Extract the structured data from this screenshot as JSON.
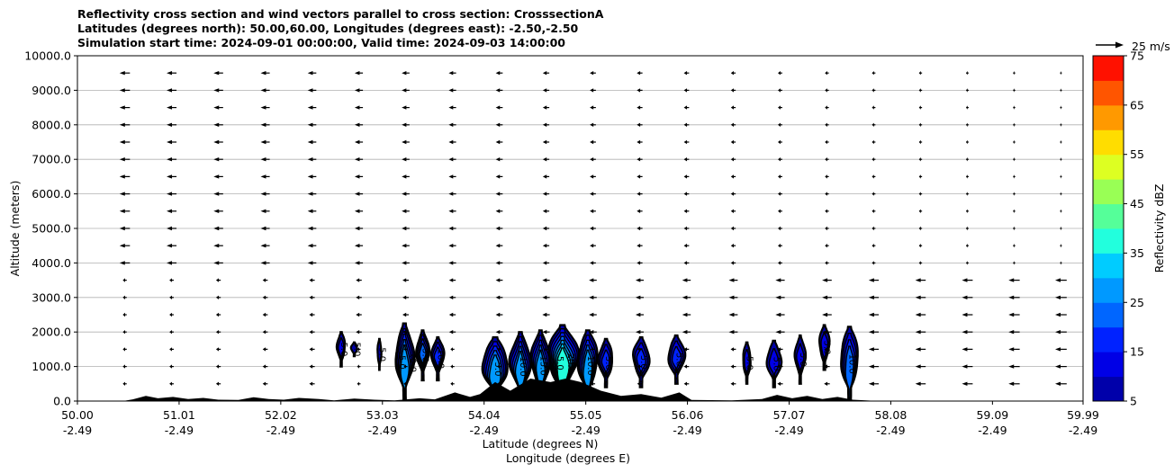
{
  "chart_data": {
    "type": "contourf",
    "title_lines": [
      "Reflectivity cross section and wind vectors parallel to cross section: CrosssectionA",
      "Latitudes (degrees north): 50.00,60.00, Longitudes (degrees east): -2.50,-2.50",
      "Simulation start time: 2024-09-01 00:00:00, Valid time: 2024-09-03 14:00:00"
    ],
    "xlabel_lines": [
      "Latitude (degrees N)",
      "Longitude (degrees E)"
    ],
    "ylabel": "Altitude (meters)",
    "xlim": [
      50.0,
      59.99
    ],
    "ylim": [
      0,
      10000
    ],
    "x_ticks": [
      {
        "lat": "50.00",
        "lon": "-2.49",
        "value": 50.0
      },
      {
        "lat": "51.01",
        "lon": "-2.49",
        "value": 51.01
      },
      {
        "lat": "52.02",
        "lon": "-2.49",
        "value": 52.02
      },
      {
        "lat": "53.03",
        "lon": "-2.49",
        "value": 53.03
      },
      {
        "lat": "54.04",
        "lon": "-2.49",
        "value": 54.04
      },
      {
        "lat": "55.05",
        "lon": "-2.49",
        "value": 55.05
      },
      {
        "lat": "56.06",
        "lon": "-2.49",
        "value": 56.06
      },
      {
        "lat": "57.07",
        "lon": "-2.49",
        "value": 57.07
      },
      {
        "lat": "58.08",
        "lon": "-2.49",
        "value": 58.08
      },
      {
        "lat": "59.09",
        "lon": "-2.49",
        "value": 59.09
      },
      {
        "lat": "59.99",
        "lon": "-2.49",
        "value": 59.99
      }
    ],
    "y_ticks": [
      0,
      1000,
      2000,
      3000,
      4000,
      5000,
      6000,
      7000,
      8000,
      9000,
      10000
    ],
    "y_tick_labels": [
      "0.0",
      "1000.0",
      "2000.0",
      "3000.0",
      "4000.0",
      "5000.0",
      "6000.0",
      "7000.0",
      "8000.0",
      "9000.0",
      "10000.0"
    ],
    "grid": "horizontal",
    "colorbar": {
      "label": "Reflectivity dBZ",
      "levels": [
        5,
        10,
        15,
        20,
        25,
        30,
        35,
        40,
        45,
        50,
        55,
        60,
        65,
        70,
        75
      ],
      "tick_labels": [
        "5",
        "15",
        "25",
        "35",
        "45",
        "55",
        "65",
        "75"
      ],
      "colors": [
        "#0000aa",
        "#0000e6",
        "#0022ff",
        "#0066ff",
        "#0099ff",
        "#00ccff",
        "#22ffdd",
        "#55ff99",
        "#99ff55",
        "#ddff22",
        "#ffdd00",
        "#ff9900",
        "#ff5500",
        "#ff1100",
        "#aa0000"
      ]
    },
    "wind_reference": {
      "label": "25 m/s",
      "speed": 25
    },
    "storm_cells": [
      {
        "lat": 52.62,
        "half_width": 0.04,
        "top": 2000,
        "bottom": 1000,
        "max_dbz": 12,
        "labels": [
          "5.0"
        ]
      },
      {
        "lat": 52.75,
        "half_width": 0.03,
        "top": 1700,
        "bottom": 1300,
        "max_dbz": 8,
        "labels": [
          "5.0"
        ]
      },
      {
        "lat": 53.0,
        "half_width": 0.02,
        "top": 1800,
        "bottom": 900,
        "max_dbz": 7,
        "labels": [
          "5.0"
        ]
      },
      {
        "lat": 53.25,
        "half_width": 0.09,
        "top": 2250,
        "bottom": 0,
        "max_dbz": 25,
        "labels": [
          "5.0",
          "10.0"
        ]
      },
      {
        "lat": 53.43,
        "half_width": 0.06,
        "top": 2050,
        "bottom": 600,
        "max_dbz": 20,
        "labels": [
          "5.0"
        ]
      },
      {
        "lat": 53.58,
        "half_width": 0.06,
        "top": 1850,
        "bottom": 600,
        "max_dbz": 17,
        "labels": [
          "10.0"
        ]
      },
      {
        "lat": 54.15,
        "half_width": 0.13,
        "top": 1850,
        "bottom": 0,
        "max_dbz": 25,
        "labels": [
          "5.0"
        ]
      },
      {
        "lat": 54.4,
        "half_width": 0.1,
        "top": 2000,
        "bottom": 0,
        "max_dbz": 25,
        "labels": [
          "10.0"
        ]
      },
      {
        "lat": 54.6,
        "half_width": 0.09,
        "top": 2050,
        "bottom": 0,
        "max_dbz": 25,
        "labels": [
          "15.0"
        ]
      },
      {
        "lat": 54.82,
        "half_width": 0.15,
        "top": 2200,
        "bottom": 0,
        "max_dbz": 35,
        "labels": [
          "5.0",
          "20.0"
        ]
      },
      {
        "lat": 55.07,
        "half_width": 0.1,
        "top": 2050,
        "bottom": 0,
        "max_dbz": 25,
        "labels": [
          "10.0"
        ]
      },
      {
        "lat": 55.25,
        "half_width": 0.07,
        "top": 1800,
        "bottom": 400,
        "max_dbz": 17,
        "labels": [
          "5.0"
        ]
      },
      {
        "lat": 55.6,
        "half_width": 0.08,
        "top": 1850,
        "bottom": 400,
        "max_dbz": 17,
        "labels": [
          "5.0"
        ]
      },
      {
        "lat": 55.95,
        "half_width": 0.08,
        "top": 1900,
        "bottom": 500,
        "max_dbz": 17,
        "labels": [
          "5.0"
        ]
      },
      {
        "lat": 56.65,
        "half_width": 0.04,
        "top": 1700,
        "bottom": 500,
        "max_dbz": 12,
        "labels": [
          "5.0"
        ]
      },
      {
        "lat": 56.92,
        "half_width": 0.07,
        "top": 1750,
        "bottom": 400,
        "max_dbz": 14,
        "labels": [
          "5.0"
        ]
      },
      {
        "lat": 57.18,
        "half_width": 0.05,
        "top": 1900,
        "bottom": 500,
        "max_dbz": 14,
        "labels": [
          "5.0"
        ]
      },
      {
        "lat": 57.42,
        "half_width": 0.05,
        "top": 2200,
        "bottom": 900,
        "max_dbz": 14,
        "labels": [
          "5.0"
        ]
      },
      {
        "lat": 57.67,
        "half_width": 0.09,
        "top": 2150,
        "bottom": 0,
        "max_dbz": 20,
        "labels": [
          "10.0"
        ]
      }
    ],
    "terrain": [
      [
        50.0,
        0
      ],
      [
        50.45,
        0
      ],
      [
        50.55,
        50
      ],
      [
        50.68,
        150
      ],
      [
        50.8,
        80
      ],
      [
        50.95,
        120
      ],
      [
        51.1,
        60
      ],
      [
        51.25,
        90
      ],
      [
        51.4,
        40
      ],
      [
        51.6,
        30
      ],
      [
        51.75,
        110
      ],
      [
        51.9,
        60
      ],
      [
        52.05,
        40
      ],
      [
        52.2,
        90
      ],
      [
        52.4,
        60
      ],
      [
        52.55,
        20
      ],
      [
        52.75,
        70
      ],
      [
        52.95,
        40
      ],
      [
        53.15,
        20
      ],
      [
        53.4,
        80
      ],
      [
        53.55,
        50
      ],
      [
        53.75,
        250
      ],
      [
        53.9,
        120
      ],
      [
        54.0,
        200
      ],
      [
        54.15,
        550
      ],
      [
        54.3,
        300
      ],
      [
        54.5,
        650
      ],
      [
        54.7,
        550
      ],
      [
        54.85,
        650
      ],
      [
        55.0,
        550
      ],
      [
        55.2,
        300
      ],
      [
        55.4,
        150
      ],
      [
        55.6,
        200
      ],
      [
        55.8,
        100
      ],
      [
        55.98,
        250
      ],
      [
        56.1,
        30
      ],
      [
        56.5,
        20
      ],
      [
        56.8,
        60
      ],
      [
        56.95,
        180
      ],
      [
        57.1,
        80
      ],
      [
        57.25,
        150
      ],
      [
        57.4,
        60
      ],
      [
        57.55,
        120
      ],
      [
        57.7,
        40
      ],
      [
        57.9,
        10
      ],
      [
        58.2,
        0
      ],
      [
        59.99,
        0
      ]
    ],
    "wind_field": {
      "x_step": 0.465,
      "z_levels": [
        500,
        1000,
        1500,
        2000,
        2500,
        3000,
        3500,
        4000,
        4500,
        5000,
        5500,
        6000,
        6500,
        7000,
        7500,
        8000,
        8500,
        9000,
        9500
      ],
      "description": "westward flow, strongest aloft (~14 m/s) decreasing eastward"
    }
  }
}
